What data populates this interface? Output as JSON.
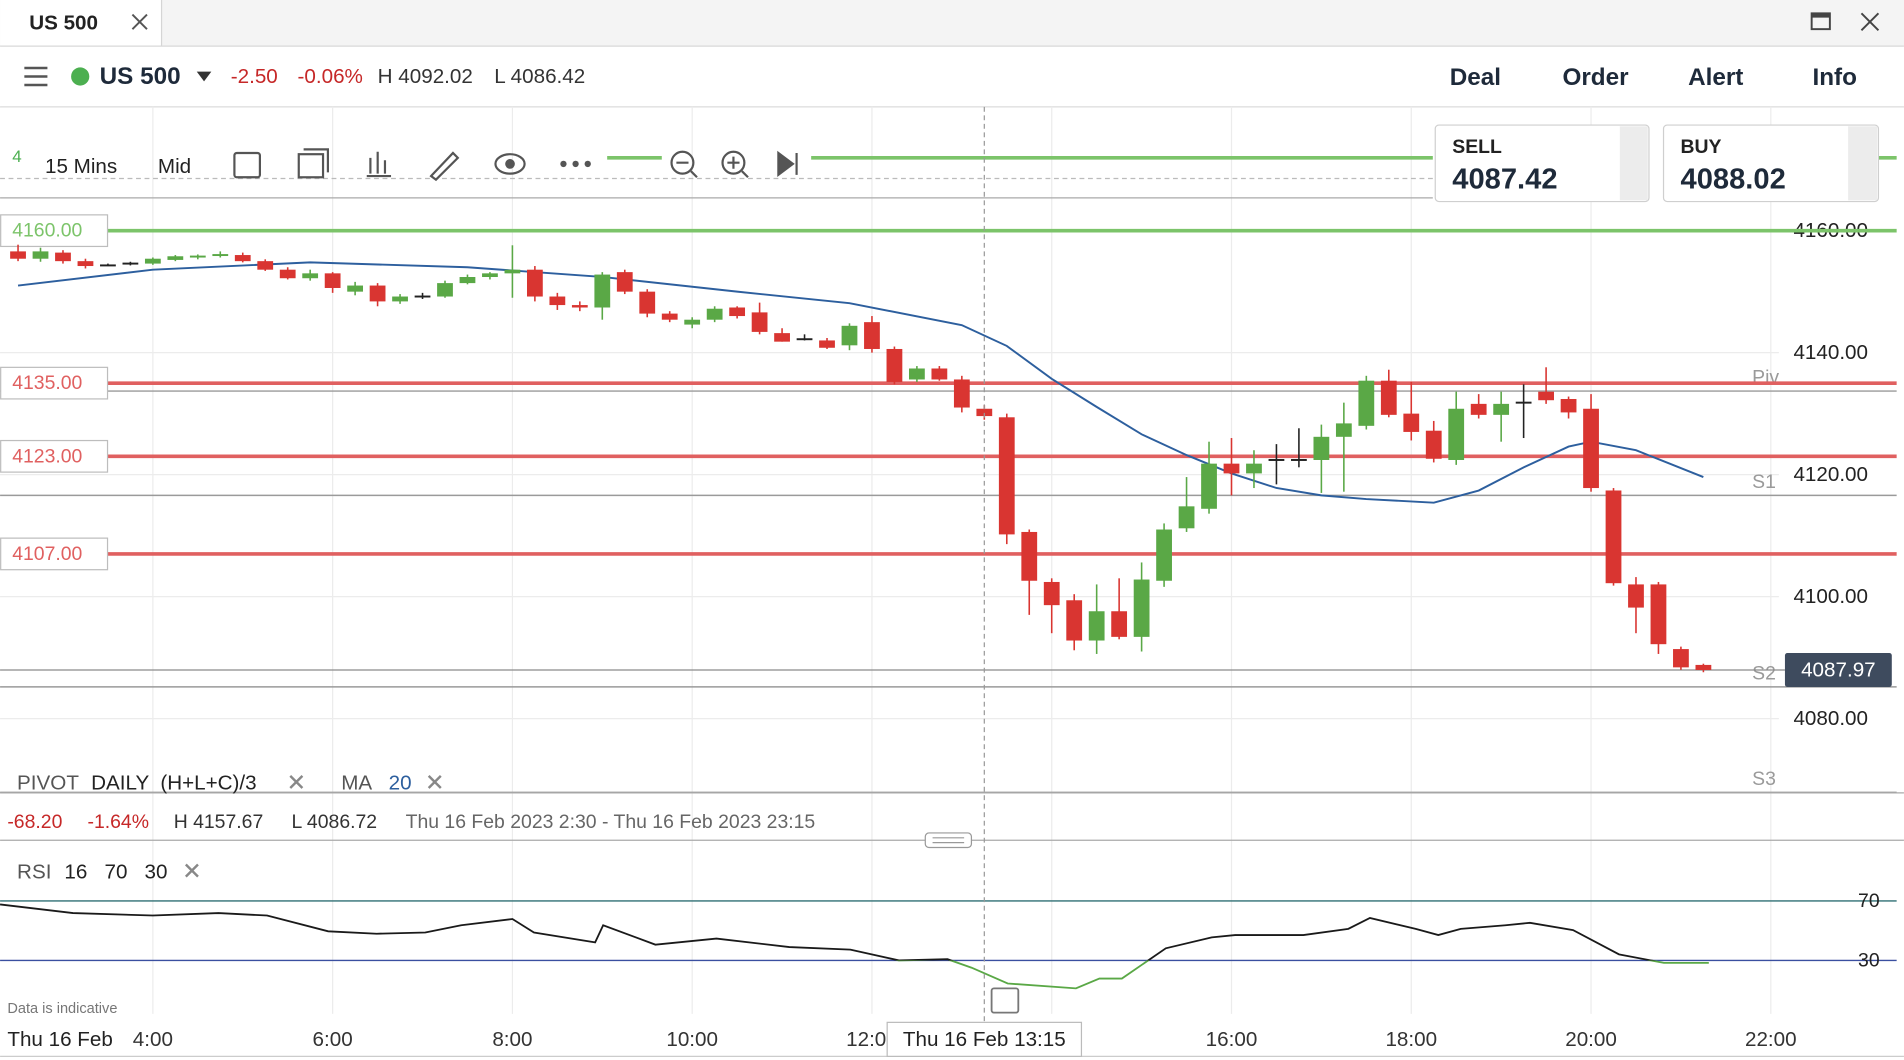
{
  "ui": {
    "tab": "US 500",
    "market": "US 500",
    "change": "-2.50",
    "change_pct": "-0.06%",
    "high": "H 4092.02",
    "low": "L 4086.42",
    "menu": [
      "Deal",
      "Order",
      "Alert",
      "Info"
    ],
    "toolbar": {
      "count": "4",
      "interval": "15 Mins",
      "price_type": "Mid"
    },
    "sell": {
      "label": "SELL",
      "price": "4087.42"
    },
    "buy": {
      "label": "BUY",
      "price": "4088.02"
    },
    "legend": {
      "pivot": "PIVOT",
      "period": "DAILY",
      "formula": "(H+L+C)/3",
      "ma": "MA",
      "ma_period": "20"
    },
    "stats": {
      "change": "-68.20",
      "change_pct": "-1.64%",
      "high": "H 4157.67",
      "low": "L 4086.72",
      "range": "Thu 16 Feb 2023 2:30 - Thu 16 Feb 2023 23:15"
    },
    "rsi_legend": {
      "name": "RSI",
      "period": "16",
      "upper": "70",
      "lower": "30"
    },
    "note": "Data is indicative",
    "date": "Thu 16 Feb"
  },
  "chart_data": [
    {
      "type": "candlestick",
      "x": [
        2.5,
        2.75,
        3,
        3.25,
        3.5,
        3.75,
        4,
        4.25,
        4.5,
        4.75,
        5,
        5.25,
        5.5,
        5.75,
        6,
        6.25,
        6.5,
        6.75,
        7,
        7.25,
        7.5,
        7.75,
        8,
        8.25,
        8.5,
        8.75,
        9,
        9.25,
        9.5,
        9.75,
        10,
        10.25,
        10.5,
        10.75,
        11,
        11.25,
        11.5,
        11.75,
        12,
        12.25,
        12.5,
        12.75,
        13,
        13.25,
        13.5,
        13.75,
        14,
        14.25,
        14.5,
        14.75,
        15,
        15.25,
        15.5,
        15.75,
        16,
        16.25,
        16.5,
        16.75,
        17,
        17.25,
        17.5,
        17.75,
        18,
        18.25,
        18.5,
        18.75,
        19,
        19.25,
        19.5,
        19.75,
        20,
        20.25,
        20.5,
        20.75,
        21,
        21.25
      ],
      "open": [
        4156.6,
        4155.4,
        4156.4,
        4155.0,
        4154.3,
        4154.6,
        4154.6,
        4155.2,
        4155.6,
        4155.9,
        4156.0,
        4155.0,
        4153.6,
        4152.2,
        4153.0,
        4150.0,
        4151.0,
        4148.4,
        4149.2,
        4149.2,
        4151.4,
        4152.4,
        4153.0,
        4153.6,
        4149.2,
        4147.8,
        4147.4,
        4153.2,
        4150.0,
        4146.4,
        4144.6,
        4145.4,
        4147.4,
        4146.6,
        4143.2,
        4142.2,
        4142.0,
        4141.2,
        4145.0,
        4140.6,
        4135.6,
        4137.4,
        4135.6,
        4130.8,
        4129.4,
        4110.6,
        4102.4,
        4099.4,
        4092.8,
        4097.6,
        4093.4,
        4102.6,
        4111.2,
        4114.4,
        4121.8,
        4120.2,
        4122.4,
        4122.4,
        4122.4,
        4126.2,
        4128.0,
        4135.4,
        4130.0,
        4127.2,
        4122.4,
        4131.6,
        4129.8,
        4131.8,
        4133.6,
        4132.4,
        4130.8,
        4117.4,
        4102.0,
        4102.0,
        4091.4,
        4088.8
      ],
      "high": [
        4157.7,
        4157.2,
        4156.8,
        4155.4,
        4154.6,
        4154.9,
        4155.6,
        4156.0,
        4156.1,
        4156.6,
        4156.4,
        4155.3,
        4154.0,
        4153.6,
        4153.2,
        4151.6,
        4151.4,
        4149.6,
        4149.8,
        4151.8,
        4152.8,
        4153.2,
        4157.6,
        4154.2,
        4149.8,
        4148.4,
        4153.2,
        4153.6,
        4150.4,
        4146.8,
        4145.8,
        4147.6,
        4147.6,
        4148.2,
        4144.0,
        4143.0,
        4142.4,
        4144.8,
        4146.0,
        4141.0,
        4137.8,
        4137.8,
        4136.2,
        4131.4,
        4130.0,
        4111.0,
        4103.0,
        4100.4,
        4102.0,
        4103.0,
        4105.6,
        4112.0,
        4119.6,
        4125.4,
        4126.0,
        4124.0,
        4125.0,
        4127.6,
        4128.2,
        4131.8,
        4136.2,
        4137.2,
        4135.2,
        4128.8,
        4133.6,
        4133.2,
        4133.6,
        4134.8,
        4137.6,
        4132.8,
        4133.2,
        4117.8,
        4103.2,
        4102.4,
        4091.8,
        4089.0
      ],
      "low": [
        4155.0,
        4154.9,
        4154.6,
        4153.8,
        4154.2,
        4154.3,
        4154.4,
        4155.0,
        4155.3,
        4155.6,
        4154.8,
        4153.4,
        4152.0,
        4151.8,
        4149.8,
        4149.4,
        4147.6,
        4148.0,
        4148.8,
        4149.0,
        4151.2,
        4152.0,
        4149.0,
        4148.4,
        4147.0,
        4146.8,
        4145.4,
        4149.6,
        4145.8,
        4145.0,
        4144.0,
        4145.0,
        4145.6,
        4143.0,
        4141.8,
        4142.0,
        4140.6,
        4140.4,
        4140.0,
        4134.8,
        4135.2,
        4135.4,
        4130.2,
        4129.0,
        4108.6,
        4097.0,
        4094.0,
        4091.2,
        4090.6,
        4093.0,
        4091.0,
        4101.6,
        4110.6,
        4113.6,
        4116.6,
        4117.8,
        4118.4,
        4121.2,
        4117.0,
        4117.2,
        4127.4,
        4129.4,
        4125.6,
        4122.0,
        4121.6,
        4129.2,
        4125.4,
        4126.0,
        4131.6,
        4129.2,
        4117.2,
        4101.8,
        4094.0,
        4090.6,
        4088.0,
        4087.6
      ],
      "close": [
        4155.4,
        4156.6,
        4155.0,
        4154.2,
        4154.3,
        4154.6,
        4155.4,
        4155.8,
        4155.9,
        4156.1,
        4155.0,
        4153.6,
        4152.2,
        4153.0,
        4150.6,
        4151.0,
        4148.4,
        4149.2,
        4149.2,
        4151.4,
        4152.4,
        4153.0,
        4153.6,
        4149.2,
        4147.8,
        4147.4,
        4152.8,
        4150.0,
        4146.4,
        4145.4,
        4145.4,
        4147.2,
        4146.0,
        4143.4,
        4141.8,
        4142.2,
        4140.8,
        4144.4,
        4140.6,
        4135.2,
        4137.4,
        4135.6,
        4131.0,
        4129.6,
        4110.2,
        4102.6,
        4098.6,
        4092.8,
        4097.6,
        4093.4,
        4102.8,
        4111.0,
        4114.8,
        4121.8,
        4120.2,
        4121.8,
        4122.4,
        4122.4,
        4126.2,
        4128.4,
        4135.4,
        4129.8,
        4127.0,
        4122.6,
        4130.8,
        4129.8,
        4131.6,
        4131.8,
        4132.2,
        4130.2,
        4117.8,
        4102.2,
        4098.2,
        4092.2,
        4088.4,
        4087.97
      ],
      "up_color": "#5aa846",
      "down_color": "#d93531",
      "flat_color": "#222222",
      "xlim": [
        2.3,
        23.4
      ],
      "ylim": [
        4072.4,
        4179.9
      ],
      "xticks": [
        {
          "value": 4,
          "label": "4:00"
        },
        {
          "value": 6,
          "label": "6:00"
        },
        {
          "value": 8,
          "label": "8:00"
        },
        {
          "value": 10,
          "label": "10:00"
        },
        {
          "value": 12,
          "label": "12:00"
        },
        {
          "value": 14,
          "label": "14:00"
        },
        {
          "value": 16,
          "label": "16:00"
        },
        {
          "value": 18,
          "label": "18:00"
        },
        {
          "value": 20,
          "label": "20:00"
        },
        {
          "value": 22,
          "label": "22:00"
        }
      ],
      "yticks": [
        {
          "value": 4080,
          "label": "4080.00"
        },
        {
          "value": 4100,
          "label": "4100.00"
        },
        {
          "value": 4120,
          "label": "4120.00"
        },
        {
          "value": 4140,
          "label": "4140.00"
        },
        {
          "value": 4160,
          "label": "4160.00"
        }
      ],
      "grid": true,
      "ma": {
        "color": "#2d5f9e",
        "x": [
          2.5,
          4,
          5.75,
          7.5,
          9,
          10.5,
          11.75,
          13,
          13.5,
          14,
          14.5,
          15,
          15.5,
          16,
          16.5,
          17,
          17.5,
          18.25,
          18.75,
          19.25,
          19.75,
          20,
          20.5,
          21.25
        ],
        "values": [
          4151.0,
          4153.6,
          4154.8,
          4154.0,
          4152.4,
          4150.0,
          4148.1,
          4144.5,
          4141.1,
          4135.7,
          4131.1,
          4126.6,
          4123.2,
          4120.2,
          4117.8,
          4116.6,
          4116.0,
          4115.4,
          4117.4,
          4121.2,
          4124.6,
          4125.4,
          4124.0,
          4119.6
        ]
      },
      "levels": [
        {
          "value": 4160,
          "label": "4160.00",
          "color": "#7cc46a"
        },
        {
          "value": 4135,
          "label": "4135.00",
          "color": "#e06060"
        },
        {
          "value": 4123,
          "label": "4123.00",
          "color": "#e06060"
        },
        {
          "value": 4107,
          "label": "4107.00",
          "color": "#e06060"
        }
      ],
      "pivots": [
        {
          "name": "Piv",
          "value": 4133.7
        },
        {
          "name": "S1",
          "value": 4116.6
        },
        {
          "name": "S2",
          "value": 4085.2
        },
        {
          "name": "S3",
          "value": 4067.9
        }
      ],
      "pivot_color": "#9a9a9a",
      "last": {
        "value": 4087.97,
        "label": "4087.97"
      },
      "crosshair": {
        "value": 13.25,
        "label": "Thu 16 Feb 13:15"
      }
    },
    {
      "type": "line",
      "x": [
        2.3,
        3.11,
        4,
        4.73,
        5.27,
        5.95,
        6.49,
        7.03,
        7.43,
        8,
        8.24,
        8.92,
        9.01,
        9.59,
        10.27,
        11.08,
        11.76,
        12.3,
        12.84,
        13.11,
        13.51,
        14.27,
        14.53,
        14.78,
        15.27,
        15.78,
        16.04,
        16.8,
        17.3,
        17.54,
        18.05,
        18.3,
        18.55,
        19.05,
        19.32,
        19.8,
        20.31,
        20.81,
        21.31
      ],
      "values": [
        67.6,
        61.8,
        60.2,
        61.8,
        60.2,
        49.6,
        48,
        48.8,
        53.7,
        57.8,
        48.8,
        42.2,
        53.7,
        40.6,
        44.7,
        39,
        37.3,
        30,
        30.8,
        25.1,
        14.5,
        11.2,
        17.8,
        17.8,
        38.2,
        45.5,
        47.1,
        47.1,
        51.2,
        58.6,
        51.2,
        47.1,
        51.2,
        53.7,
        55.3,
        50.4,
        34.1,
        28.4,
        28.4
      ],
      "color": "#1a1a1a",
      "below_color": "#5aa846",
      "xlim": [
        2.3,
        23.4
      ],
      "ylim": [
        0,
        100
      ],
      "yticks": [
        30,
        70
      ],
      "tick_colors": [
        "#3a4fa0",
        "#2f6f73"
      ]
    }
  ]
}
